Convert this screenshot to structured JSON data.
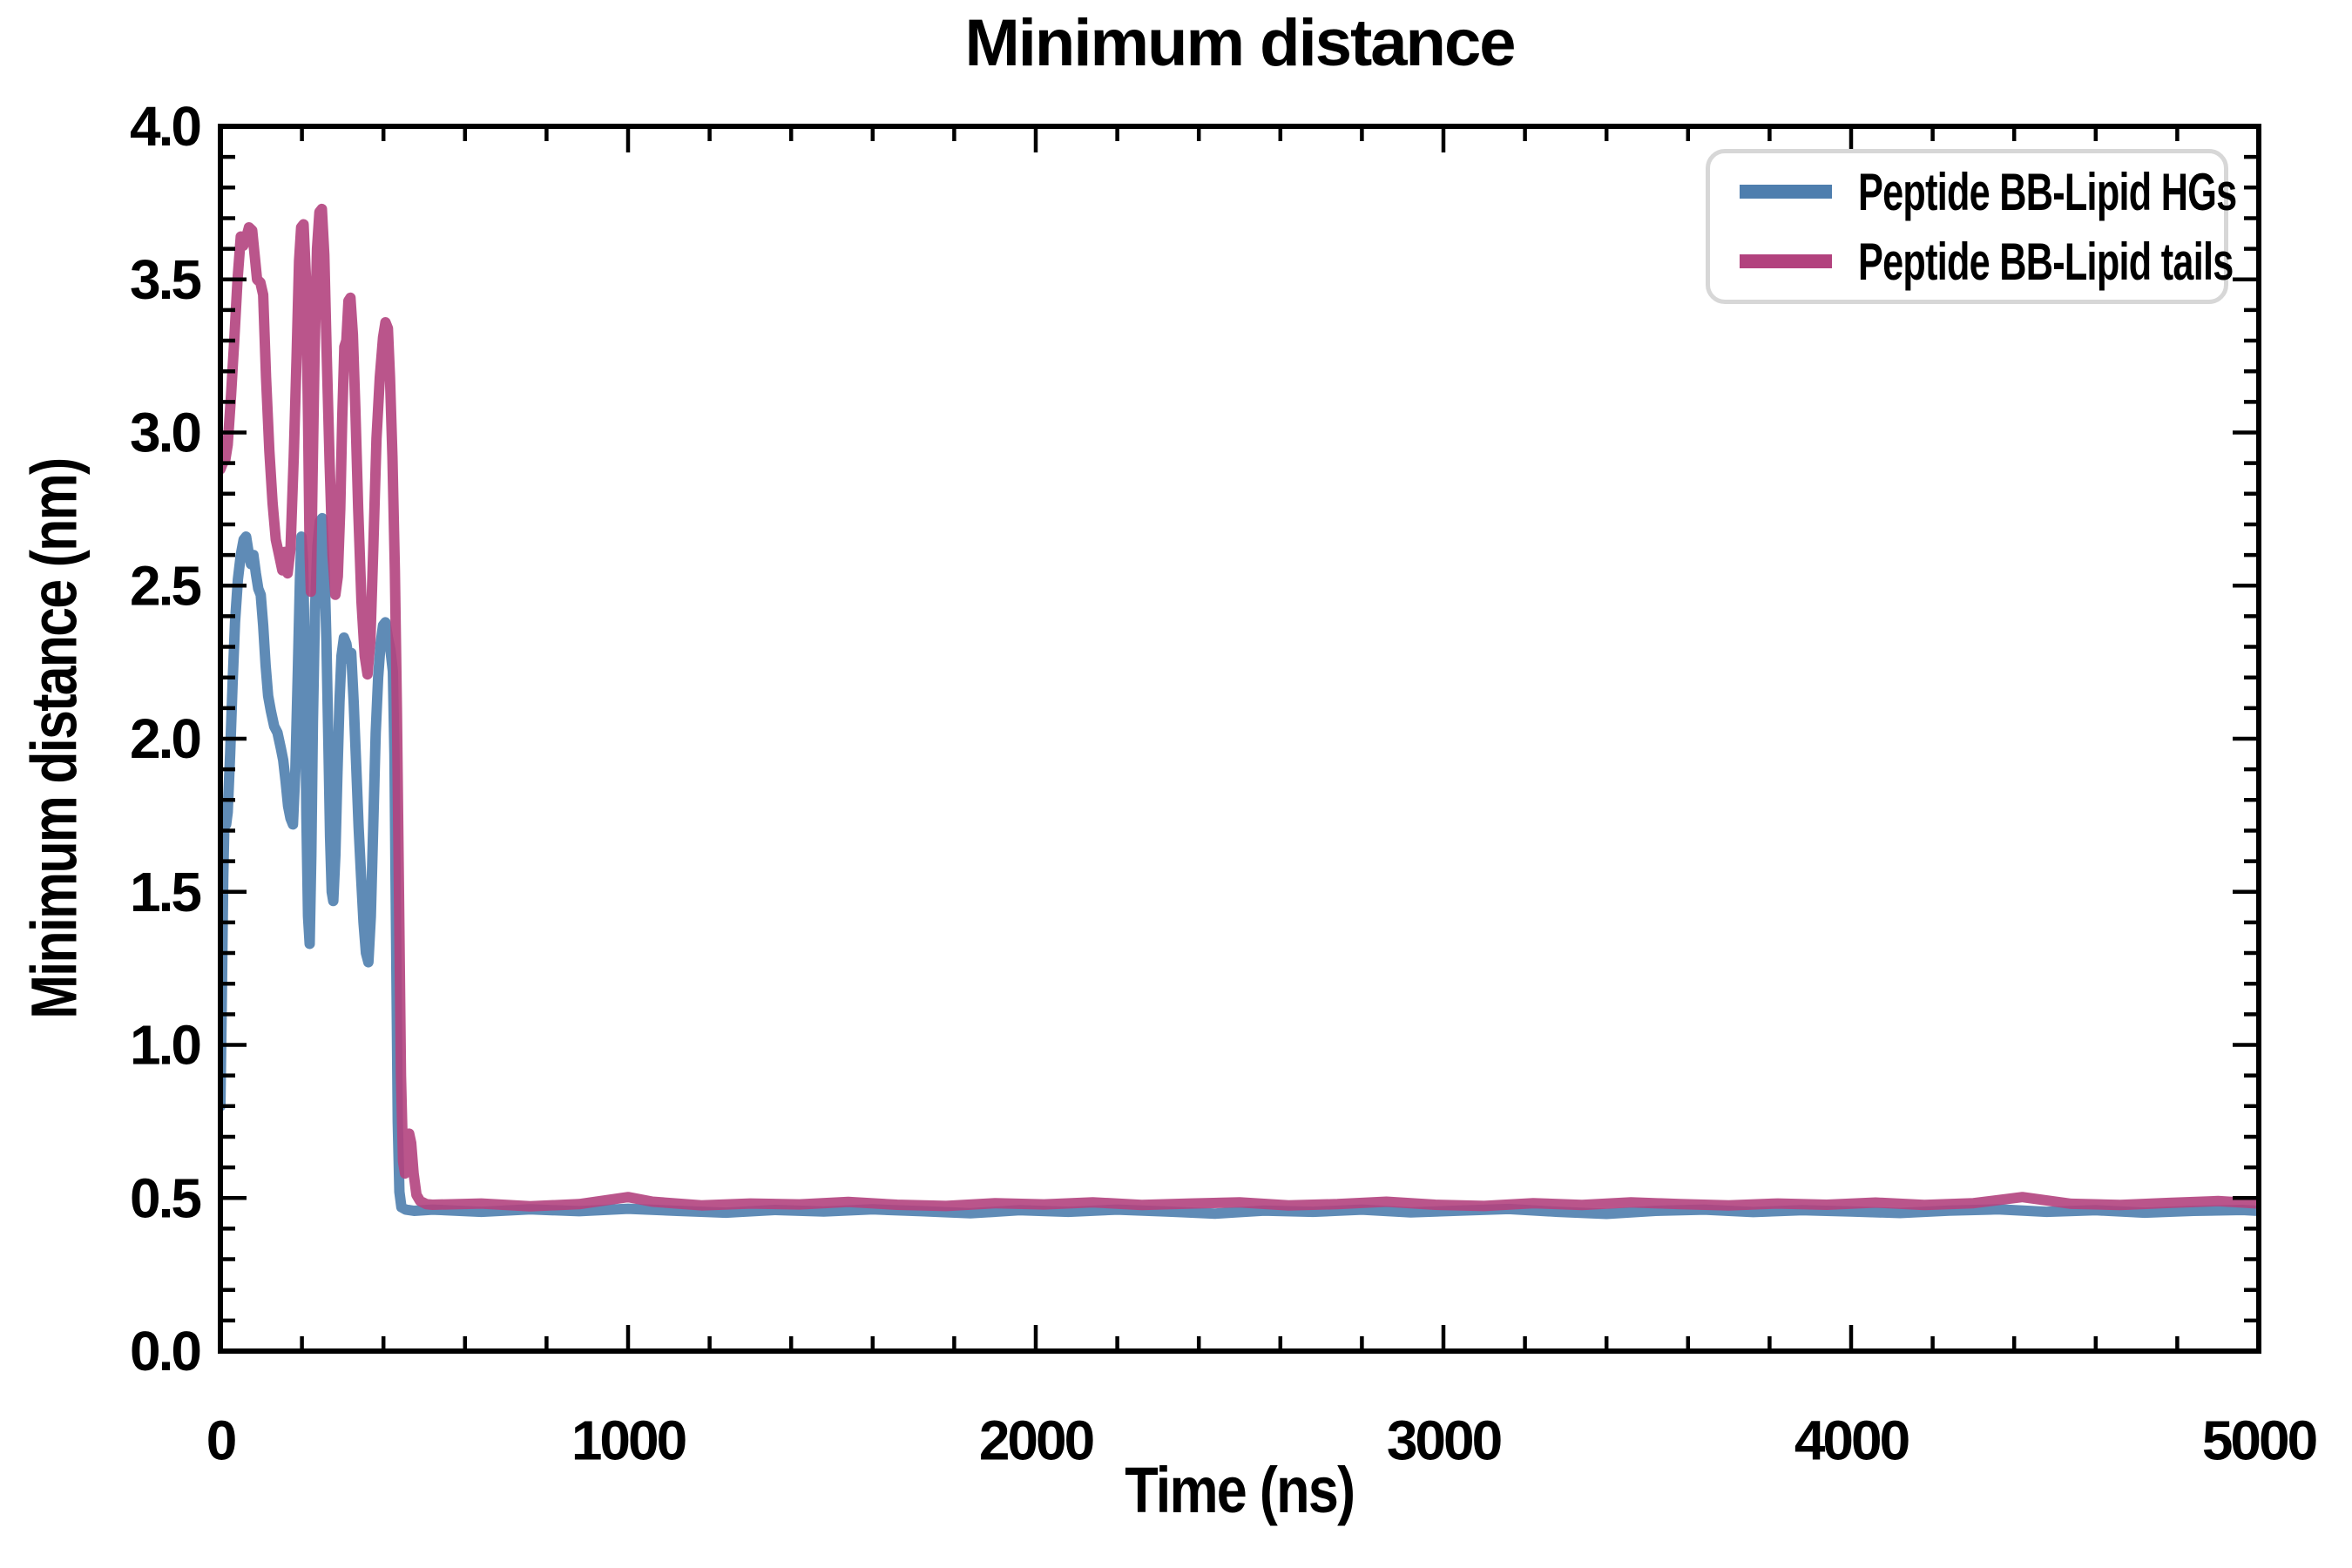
{
  "title": "Minimum distance",
  "axes": {
    "x_label": "Time (ns)",
    "y_label": "Minimum distance (nm)"
  },
  "chart_data": {
    "type": "line",
    "title": "Minimum distance",
    "xlabel": "Time (ns)",
    "ylabel": "Minimum distance (nm)",
    "xlim": [
      0,
      5000
    ],
    "ylim": [
      0.0,
      4.0
    ],
    "grid": false,
    "legend_position": "upper right",
    "x_major_ticks": [
      0,
      1000,
      2000,
      3000,
      4000,
      5000
    ],
    "x_tick_labels": [
      "0",
      "1000",
      "2000",
      "3000",
      "4000",
      "5000"
    ],
    "x_minor_step": 200,
    "y_major_ticks": [
      0.0,
      0.5,
      1.0,
      1.5,
      2.0,
      2.5,
      3.0,
      3.5,
      4.0
    ],
    "y_tick_labels": [
      "0.0",
      "0.5",
      "1.0",
      "1.5",
      "2.0",
      "2.5",
      "3.0",
      "3.5",
      "4.0"
    ],
    "y_minor_step": 0.1,
    "axis_color": "#000000",
    "line_width": 12,
    "line_opacity": 0.9,
    "series": [
      {
        "name": "Peptide BB-Lipid HGs",
        "color": "#4E7EAE",
        "points": [
          [
            0,
            0.8
          ],
          [
            3,
            1.1
          ],
          [
            7,
            1.55
          ],
          [
            10,
            1.74
          ],
          [
            14,
            1.72
          ],
          [
            18,
            1.76
          ],
          [
            24,
            1.95
          ],
          [
            30,
            2.18
          ],
          [
            36,
            2.38
          ],
          [
            43,
            2.52
          ],
          [
            50,
            2.6
          ],
          [
            57,
            2.65
          ],
          [
            63,
            2.66
          ],
          [
            69,
            2.61
          ],
          [
            75,
            2.57
          ],
          [
            81,
            2.6
          ],
          [
            87,
            2.54
          ],
          [
            93,
            2.49
          ],
          [
            99,
            2.47
          ],
          [
            105,
            2.37
          ],
          [
            111,
            2.24
          ],
          [
            117,
            2.14
          ],
          [
            124,
            2.09
          ],
          [
            132,
            2.04
          ],
          [
            140,
            2.02
          ],
          [
            148,
            1.97
          ],
          [
            154,
            1.93
          ],
          [
            160,
            1.86
          ],
          [
            166,
            1.78
          ],
          [
            172,
            1.74
          ],
          [
            178,
            1.72
          ],
          [
            184,
            1.9
          ],
          [
            190,
            2.22
          ],
          [
            195,
            2.52
          ],
          [
            199,
            2.66
          ],
          [
            203,
            2.58
          ],
          [
            207,
            2.25
          ],
          [
            211,
            1.75
          ],
          [
            215,
            1.42
          ],
          [
            219,
            1.33
          ],
          [
            223,
            1.62
          ],
          [
            227,
            2.05
          ],
          [
            232,
            2.42
          ],
          [
            238,
            2.63
          ],
          [
            244,
            2.71
          ],
          [
            250,
            2.72
          ],
          [
            255,
            2.58
          ],
          [
            260,
            2.32
          ],
          [
            265,
            1.98
          ],
          [
            269,
            1.68
          ],
          [
            273,
            1.5
          ],
          [
            277,
            1.47
          ],
          [
            282,
            1.62
          ],
          [
            287,
            1.88
          ],
          [
            292,
            2.12
          ],
          [
            297,
            2.27
          ],
          [
            303,
            2.33
          ],
          [
            309,
            2.31
          ],
          [
            315,
            2.26
          ],
          [
            321,
            2.28
          ],
          [
            327,
            2.12
          ],
          [
            333,
            1.92
          ],
          [
            339,
            1.71
          ],
          [
            345,
            1.55
          ],
          [
            351,
            1.4
          ],
          [
            357,
            1.3
          ],
          [
            363,
            1.27
          ],
          [
            369,
            1.42
          ],
          [
            375,
            1.72
          ],
          [
            381,
            2.02
          ],
          [
            387,
            2.2
          ],
          [
            393,
            2.31
          ],
          [
            399,
            2.37
          ],
          [
            405,
            2.38
          ],
          [
            411,
            2.33
          ],
          [
            417,
            2.29
          ],
          [
            423,
            2.22
          ],
          [
            427,
            1.95
          ],
          [
            431,
            1.35
          ],
          [
            435,
            0.75
          ],
          [
            439,
            0.52
          ],
          [
            444,
            0.47
          ],
          [
            455,
            0.462
          ],
          [
            475,
            0.458
          ],
          [
            500,
            0.46
          ],
          [
            520,
            0.462
          ],
          [
            640,
            0.455
          ],
          [
            760,
            0.463
          ],
          [
            880,
            0.457
          ],
          [
            1000,
            0.465
          ],
          [
            1120,
            0.458
          ],
          [
            1240,
            0.452
          ],
          [
            1360,
            0.461
          ],
          [
            1480,
            0.456
          ],
          [
            1600,
            0.463
          ],
          [
            1720,
            0.457
          ],
          [
            1840,
            0.45
          ],
          [
            1960,
            0.46
          ],
          [
            2080,
            0.455
          ],
          [
            2200,
            0.462
          ],
          [
            2320,
            0.456
          ],
          [
            2440,
            0.449
          ],
          [
            2560,
            0.459
          ],
          [
            2680,
            0.455
          ],
          [
            2800,
            0.462
          ],
          [
            2920,
            0.453
          ],
          [
            3040,
            0.459
          ],
          [
            3160,
            0.464
          ],
          [
            3280,
            0.455
          ],
          [
            3400,
            0.448
          ],
          [
            3520,
            0.458
          ],
          [
            3640,
            0.462
          ],
          [
            3760,
            0.454
          ],
          [
            3880,
            0.46
          ],
          [
            4000,
            0.456
          ],
          [
            4120,
            0.451
          ],
          [
            4240,
            0.459
          ],
          [
            4360,
            0.463
          ],
          [
            4480,
            0.455
          ],
          [
            4600,
            0.46
          ],
          [
            4720,
            0.452
          ],
          [
            4840,
            0.458
          ],
          [
            4960,
            0.461
          ],
          [
            5000,
            0.458
          ]
        ]
      },
      {
        "name": "Peptide BB-Lipid tails",
        "color": "#B2427E",
        "points": [
          [
            0,
            2.88
          ],
          [
            6,
            2.9
          ],
          [
            12,
            2.91
          ],
          [
            18,
            2.96
          ],
          [
            26,
            3.12
          ],
          [
            34,
            3.3
          ],
          [
            42,
            3.5
          ],
          [
            50,
            3.64
          ],
          [
            56,
            3.61
          ],
          [
            62,
            3.63
          ],
          [
            70,
            3.67
          ],
          [
            78,
            3.66
          ],
          [
            84,
            3.58
          ],
          [
            90,
            3.5
          ],
          [
            98,
            3.49
          ],
          [
            105,
            3.45
          ],
          [
            112,
            3.18
          ],
          [
            120,
            2.94
          ],
          [
            128,
            2.77
          ],
          [
            136,
            2.65
          ],
          [
            144,
            2.6
          ],
          [
            152,
            2.55
          ],
          [
            158,
            2.61
          ],
          [
            165,
            2.54
          ],
          [
            172,
            2.62
          ],
          [
            180,
            2.92
          ],
          [
            187,
            3.25
          ],
          [
            193,
            3.56
          ],
          [
            198,
            3.67
          ],
          [
            204,
            3.68
          ],
          [
            210,
            3.5
          ],
          [
            215,
            3.05
          ],
          [
            219,
            2.6
          ],
          [
            222,
            2.48
          ],
          [
            226,
            2.85
          ],
          [
            231,
            3.25
          ],
          [
            237,
            3.6
          ],
          [
            243,
            3.72
          ],
          [
            249,
            3.73
          ],
          [
            255,
            3.58
          ],
          [
            261,
            3.25
          ],
          [
            268,
            2.9
          ],
          [
            275,
            2.6
          ],
          [
            282,
            2.47
          ],
          [
            288,
            2.53
          ],
          [
            294,
            2.75
          ],
          [
            299,
            3.05
          ],
          [
            304,
            3.28
          ],
          [
            309,
            3.3
          ],
          [
            314,
            3.43
          ],
          [
            319,
            3.44
          ],
          [
            325,
            3.32
          ],
          [
            331,
            3.08
          ],
          [
            338,
            2.75
          ],
          [
            346,
            2.45
          ],
          [
            354,
            2.27
          ],
          [
            361,
            2.21
          ],
          [
            368,
            2.32
          ],
          [
            375,
            2.62
          ],
          [
            383,
            2.98
          ],
          [
            391,
            3.18
          ],
          [
            399,
            3.31
          ],
          [
            405,
            3.36
          ],
          [
            411,
            3.34
          ],
          [
            416,
            3.18
          ],
          [
            422,
            2.92
          ],
          [
            428,
            2.55
          ],
          [
            433,
            2.1
          ],
          [
            438,
            1.5
          ],
          [
            443,
            0.9
          ],
          [
            448,
            0.62
          ],
          [
            453,
            0.58
          ],
          [
            458,
            0.66
          ],
          [
            463,
            0.71
          ],
          [
            468,
            0.68
          ],
          [
            474,
            0.58
          ],
          [
            481,
            0.51
          ],
          [
            490,
            0.49
          ],
          [
            505,
            0.48
          ],
          [
            520,
            0.478
          ],
          [
            640,
            0.482
          ],
          [
            760,
            0.473
          ],
          [
            880,
            0.48
          ],
          [
            1000,
            0.503
          ],
          [
            1060,
            0.488
          ],
          [
            1180,
            0.476
          ],
          [
            1300,
            0.482
          ],
          [
            1420,
            0.479
          ],
          [
            1540,
            0.487
          ],
          [
            1660,
            0.478
          ],
          [
            1780,
            0.474
          ],
          [
            1900,
            0.483
          ],
          [
            2020,
            0.479
          ],
          [
            2140,
            0.486
          ],
          [
            2260,
            0.477
          ],
          [
            2380,
            0.482
          ],
          [
            2500,
            0.486
          ],
          [
            2620,
            0.476
          ],
          [
            2740,
            0.48
          ],
          [
            2860,
            0.488
          ],
          [
            2980,
            0.478
          ],
          [
            3100,
            0.474
          ],
          [
            3220,
            0.483
          ],
          [
            3340,
            0.477
          ],
          [
            3460,
            0.486
          ],
          [
            3580,
            0.48
          ],
          [
            3700,
            0.476
          ],
          [
            3820,
            0.482
          ],
          [
            3940,
            0.478
          ],
          [
            4060,
            0.485
          ],
          [
            4180,
            0.477
          ],
          [
            4300,
            0.483
          ],
          [
            4420,
            0.503
          ],
          [
            4480,
            0.492
          ],
          [
            4540,
            0.481
          ],
          [
            4660,
            0.477
          ],
          [
            4780,
            0.484
          ],
          [
            4900,
            0.49
          ],
          [
            5000,
            0.482
          ]
        ]
      }
    ]
  }
}
